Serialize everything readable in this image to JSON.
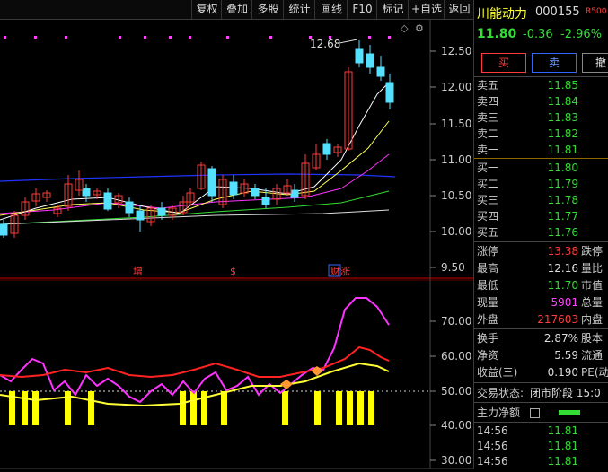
{
  "toolbar": {
    "buttons": [
      "复权",
      "叠加",
      "多股",
      "统计",
      "画线",
      "F10",
      "标记",
      "+自选",
      "返回"
    ]
  },
  "stock": {
    "name": "川能动力",
    "code": "000155",
    "badge": "R500",
    "price": "11.80",
    "change": "-0.36",
    "change_pct": "-2.96%"
  },
  "trade_buttons": {
    "buy": "买",
    "sell": "卖",
    "cancel": "撤"
  },
  "order_book": {
    "asks": [
      {
        "label": "卖五",
        "price": "11.85"
      },
      {
        "label": "卖四",
        "price": "11.84"
      },
      {
        "label": "卖三",
        "price": "11.83"
      },
      {
        "label": "卖二",
        "price": "11.82"
      },
      {
        "label": "卖一",
        "price": "11.81"
      }
    ],
    "bids": [
      {
        "label": "买一",
        "price": "11.80"
      },
      {
        "label": "买二",
        "price": "11.79"
      },
      {
        "label": "买三",
        "price": "11.78"
      },
      {
        "label": "买四",
        "price": "11.77"
      },
      {
        "label": "买五",
        "price": "11.76"
      }
    ]
  },
  "stats": [
    {
      "label": "涨停",
      "value": "13.38",
      "label2": "跌停",
      "color": "red"
    },
    {
      "label": "最高",
      "value": "12.16",
      "label2": "量比",
      "color": "white"
    },
    {
      "label": "最低",
      "value": "11.70",
      "label2": "市值",
      "color": "green"
    },
    {
      "label": "现量",
      "value": "5901",
      "label2": "总量",
      "color": "magenta"
    },
    {
      "label": "外盘",
      "value": "217603",
      "label2": "内盘",
      "color": "red"
    }
  ],
  "stats2": [
    {
      "label": "换手",
      "value": "2.87%",
      "label2": "股本"
    },
    {
      "label": "净资",
      "value": "5.59",
      "label2": "流通"
    },
    {
      "label": "收益(三)",
      "value": "0.190",
      "label2": "PE(动"
    }
  ],
  "trade_status": {
    "label": "交易状态:",
    "value": "闭市阶段 15:0"
  },
  "net_flow_label": "主力净额",
  "ticks": [
    {
      "time": "14:56",
      "price": "11.81"
    },
    {
      "time": "14:56",
      "price": "11.81"
    },
    {
      "time": "14:56",
      "price": "11.81"
    }
  ],
  "main_axis": [
    "12.50",
    "12.00",
    "11.50",
    "11.00",
    "10.50",
    "10.00",
    "9.50"
  ],
  "sub_axis": [
    "70.00",
    "60.00",
    "50.00",
    "40.00",
    "30.00"
  ],
  "annotations": {
    "high_label": "12.68",
    "markers": [
      "增",
      "$",
      "财涨"
    ]
  },
  "colors": {
    "up": "#ff3b3b",
    "down": "#54e1ff",
    "green": "#33dd33",
    "axis_bg": "#000"
  }
}
